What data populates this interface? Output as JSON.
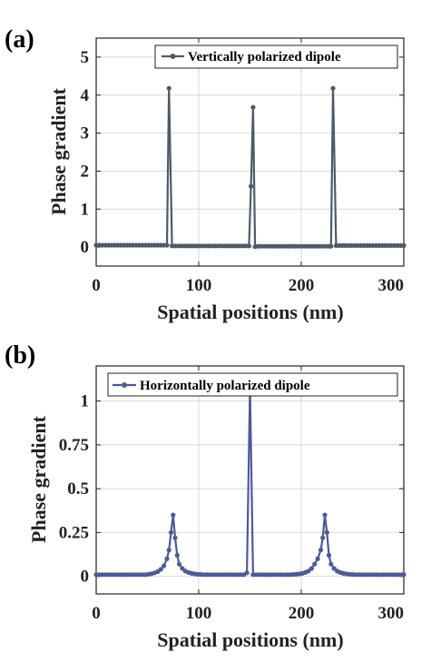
{
  "chart_data": [
    {
      "type": "line",
      "panel_label": "(a)",
      "xlabel": "Spatial positions (nm)",
      "ylabel": "Phase gradient",
      "xlim": [
        0,
        300
      ],
      "ylim": [
        -0.5,
        5.5
      ],
      "xticks": [
        "0",
        "100",
        "200",
        "300"
      ],
      "yticks": [
        "0",
        "1",
        "2",
        "3",
        "4",
        "5"
      ],
      "grid": true,
      "legend_position": "top-right",
      "series": [
        {
          "name": "Vertically polarized dipole",
          "color": "#4f5a66",
          "x": [
            0,
            3,
            6,
            9,
            12,
            15,
            18,
            21,
            24,
            27,
            30,
            33,
            36,
            39,
            42,
            45,
            48,
            51,
            54,
            57,
            60,
            63,
            66,
            69,
            71,
            74,
            77,
            80,
            83,
            86,
            89,
            92,
            95,
            98,
            101,
            104,
            107,
            110,
            113,
            116,
            119,
            122,
            125,
            128,
            131,
            134,
            137,
            140,
            143,
            146,
            149,
            151,
            153,
            155,
            158,
            161,
            164,
            167,
            170,
            173,
            176,
            179,
            182,
            185,
            188,
            191,
            194,
            197,
            200,
            203,
            206,
            209,
            212,
            215,
            218,
            221,
            224,
            227,
            229,
            231,
            234,
            237,
            240,
            243,
            246,
            249,
            252,
            255,
            258,
            261,
            264,
            267,
            270,
            273,
            276,
            279,
            282,
            285,
            288,
            291,
            294,
            297,
            300
          ],
          "y": [
            0.05,
            0.05,
            0.05,
            0.05,
            0.05,
            0.05,
            0.05,
            0.05,
            0.05,
            0.05,
            0.05,
            0.05,
            0.05,
            0.05,
            0.05,
            0.05,
            0.05,
            0.05,
            0.05,
            0.05,
            0.05,
            0.05,
            0.05,
            0.05,
            4.18,
            0.03,
            0.03,
            0.03,
            0.03,
            0.03,
            0.03,
            0.03,
            0.03,
            0.03,
            0.03,
            0.03,
            0.03,
            0.03,
            0.03,
            0.03,
            0.03,
            0.03,
            0.03,
            0.03,
            0.03,
            0.03,
            0.03,
            0.03,
            0.03,
            0.03,
            0.03,
            1.6,
            3.68,
            0.01,
            0.02,
            0.02,
            0.02,
            0.02,
            0.02,
            0.02,
            0.02,
            0.02,
            0.02,
            0.02,
            0.02,
            0.02,
            0.02,
            0.02,
            0.02,
            0.02,
            0.02,
            0.02,
            0.02,
            0.02,
            0.02,
            0.02,
            0.02,
            0.02,
            0.02,
            4.18,
            0.04,
            0.04,
            0.04,
            0.04,
            0.04,
            0.04,
            0.04,
            0.04,
            0.04,
            0.04,
            0.04,
            0.04,
            0.04,
            0.04,
            0.04,
            0.04,
            0.04,
            0.04,
            0.04,
            0.04,
            0.04,
            0.04,
            0.04
          ]
        }
      ]
    },
    {
      "type": "line",
      "panel_label": "(b)",
      "xlabel": "Spatial positions (nm)",
      "ylabel": "Phase gradient",
      "xlim": [
        0,
        300
      ],
      "ylim": [
        -0.1,
        1.2
      ],
      "xticks": [
        "0",
        "100",
        "200",
        "300"
      ],
      "yticks": [
        "0",
        "0.25",
        "0.5",
        "0.75",
        "1"
      ],
      "grid": true,
      "legend_position": "top-right",
      "series": [
        {
          "name": "Horizontally polarized dipole",
          "color": "#4e5a96",
          "x": [
            0,
            3,
            6,
            9,
            12,
            15,
            18,
            21,
            24,
            27,
            30,
            33,
            36,
            39,
            42,
            45,
            48,
            51,
            54,
            57,
            60,
            63,
            66,
            69,
            71,
            73,
            75,
            77,
            79,
            81,
            84,
            87,
            90,
            93,
            96,
            99,
            102,
            105,
            108,
            111,
            114,
            117,
            120,
            123,
            126,
            129,
            132,
            135,
            138,
            141,
            144,
            147,
            150,
            153,
            156,
            159,
            162,
            165,
            168,
            171,
            174,
            177,
            180,
            183,
            186,
            189,
            192,
            195,
            198,
            201,
            204,
            207,
            210,
            213,
            216,
            219,
            221,
            223,
            225,
            227,
            229,
            232,
            235,
            238,
            241,
            244,
            247,
            250,
            253,
            256,
            259,
            262,
            265,
            268,
            271,
            274,
            277,
            280,
            283,
            286,
            289,
            292,
            295,
            298,
            300
          ],
          "y": [
            0.01,
            0.01,
            0.01,
            0.01,
            0.01,
            0.01,
            0.01,
            0.01,
            0.01,
            0.01,
            0.01,
            0.01,
            0.01,
            0.01,
            0.01,
            0.01,
            0.01,
            0.012,
            0.015,
            0.02,
            0.027,
            0.04,
            0.06,
            0.1,
            0.15,
            0.25,
            0.35,
            0.22,
            0.12,
            0.07,
            0.045,
            0.03,
            0.022,
            0.017,
            0.014,
            0.012,
            0.011,
            0.01,
            0.01,
            0.01,
            0.01,
            0.01,
            0.01,
            0.01,
            0.01,
            0.01,
            0.01,
            0.01,
            0.01,
            0.01,
            0.01,
            0.02,
            1.08,
            0.01,
            0.01,
            0.01,
            0.01,
            0.01,
            0.01,
            0.01,
            0.01,
            0.01,
            0.01,
            0.01,
            0.01,
            0.01,
            0.011,
            0.012,
            0.014,
            0.017,
            0.022,
            0.03,
            0.045,
            0.07,
            0.1,
            0.15,
            0.22,
            0.35,
            0.25,
            0.12,
            0.07,
            0.045,
            0.03,
            0.022,
            0.017,
            0.014,
            0.012,
            0.011,
            0.01,
            0.01,
            0.01,
            0.01,
            0.01,
            0.01,
            0.01,
            0.01,
            0.01,
            0.01,
            0.01,
            0.01,
            0.01,
            0.01,
            0.01,
            0.01,
            0.01
          ]
        }
      ]
    }
  ]
}
